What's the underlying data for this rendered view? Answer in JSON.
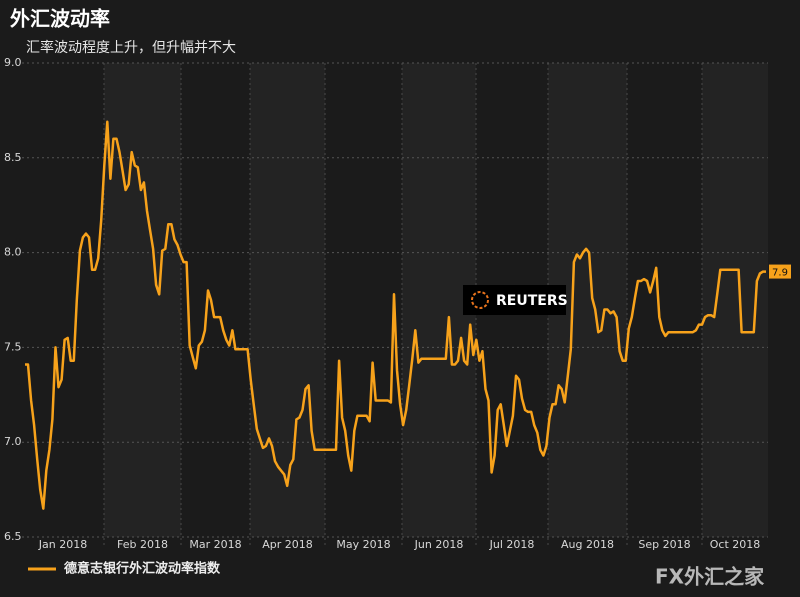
{
  "chart_data": {
    "type": "line",
    "title": "外汇波动率",
    "subtitle": "汇率波动程度上升，但升幅并不大",
    "x_tick_labels": [
      "Jan 2018",
      "Feb 2018",
      "Mar 2018",
      "Apr 2018",
      "May 2018",
      "Jun 2018",
      "Jul 2018",
      "Aug 2018",
      "Sep 2018",
      "Oct 2018"
    ],
    "series": [
      {
        "name": "德意志银行外汇波动率指数",
        "color": "#f7a21b",
        "values": [
          7.41,
          7.41,
          7.22,
          7.09,
          6.91,
          6.75,
          6.65,
          6.85,
          6.96,
          7.12,
          7.5,
          7.29,
          7.33,
          7.54,
          7.55,
          7.43,
          7.43,
          7.75,
          8.01,
          8.08,
          8.1,
          8.08,
          7.91,
          7.91,
          7.97,
          8.17,
          8.46,
          8.69,
          8.39,
          8.6,
          8.6,
          8.53,
          8.43,
          8.33,
          8.36,
          8.53,
          8.46,
          8.45,
          8.33,
          8.37,
          8.22,
          8.12,
          8.02,
          7.83,
          7.78,
          8.01,
          8.02,
          8.15,
          8.15,
          8.07,
          8.04,
          7.99,
          7.95,
          7.95,
          7.51,
          7.45,
          7.39,
          7.51,
          7.53,
          7.59,
          7.8,
          7.75,
          7.66,
          7.66,
          7.66,
          7.59,
          7.54,
          7.51,
          7.59,
          7.49,
          7.49,
          7.49,
          7.49,
          7.49,
          7.33,
          7.2,
          7.07,
          7.02,
          6.97,
          6.98,
          7.02,
          6.98,
          6.9,
          6.87,
          6.85,
          6.83,
          6.77,
          6.88,
          6.91,
          7.12,
          7.13,
          7.17,
          7.28,
          7.3,
          7.06,
          6.96,
          6.96,
          6.96,
          6.96,
          6.96,
          6.96,
          6.96,
          6.96,
          7.43,
          7.13,
          7.06,
          6.93,
          6.85,
          7.06,
          7.14,
          7.14,
          7.14,
          7.14,
          7.11,
          7.42,
          7.22,
          7.22,
          7.22,
          7.22,
          7.22,
          7.21,
          7.78,
          7.38,
          7.2,
          7.09,
          7.17,
          7.3,
          7.44,
          7.59,
          7.42,
          7.44,
          7.44,
          7.44,
          7.44,
          7.44,
          7.44,
          7.44,
          7.44,
          7.44,
          7.66,
          7.41,
          7.41,
          7.43,
          7.55,
          7.43,
          7.41,
          7.62,
          7.46,
          7.54,
          7.43,
          7.48,
          7.28,
          7.22,
          6.84,
          6.93,
          7.17,
          7.2,
          7.09,
          6.98,
          7.06,
          7.14,
          7.35,
          7.33,
          7.23,
          7.17,
          7.16,
          7.16,
          7.09,
          7.05,
          6.96,
          6.93,
          6.98,
          7.13,
          7.2,
          7.2,
          7.3,
          7.28,
          7.21,
          7.35,
          7.49,
          7.95,
          7.99,
          7.97,
          8.0,
          8.02,
          8.0,
          7.76,
          7.7,
          7.58,
          7.59,
          7.7,
          7.7,
          7.68,
          7.69,
          7.66,
          7.48,
          7.43,
          7.43,
          7.6,
          7.66,
          7.76,
          7.85,
          7.85,
          7.86,
          7.85,
          7.79,
          7.85,
          7.92,
          7.66,
          7.59,
          7.56,
          7.58,
          7.58,
          7.58,
          7.58,
          7.58,
          7.58,
          7.58,
          7.58,
          7.58,
          7.59,
          7.62,
          7.62,
          7.66,
          7.67,
          7.67,
          7.66,
          7.78,
          7.91,
          7.91,
          7.91,
          7.91,
          7.91,
          7.91,
          7.91,
          7.58,
          7.58,
          7.58,
          7.58,
          7.58,
          7.85,
          7.89,
          7.9,
          7.9
        ]
      }
    ],
    "ylim": [
      6.5,
      9
    ],
    "yticks": [
      6.5,
      {
        "value": 7,
        "label": "7.0"
      },
      7.5,
      {
        "value": 8,
        "label": "8.0"
      },
      8.5,
      {
        "value": 9,
        "label": "9.0"
      }
    ],
    "grid": true,
    "logo": "REUTERS",
    "watermark": "FX外汇之家"
  }
}
